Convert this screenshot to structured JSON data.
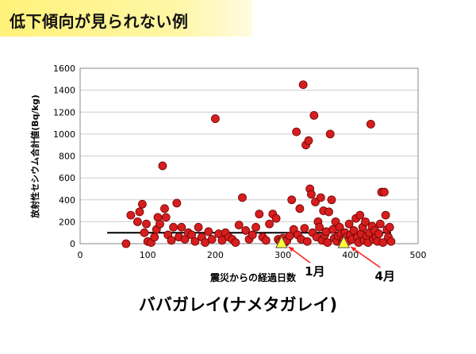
{
  "header": {
    "title": "低下傾向が見られない例"
  },
  "figure_title": "ババガレイ(ナメタガレイ)",
  "colors": {
    "banner": "#fff27a",
    "point_fill": "#d61e1e",
    "point_stroke": "#6a0000",
    "triangle_fill": "#ffff33",
    "arrow": "#ff1a1a",
    "grid": "#cccccc",
    "trend": "#000000"
  },
  "chart_data": {
    "type": "scatter",
    "xlabel": "震災からの経過日数",
    "ylabel": "放射性セシウム合計値(Bq/kg)",
    "xlim": [
      0,
      500
    ],
    "ylim": [
      0,
      1600
    ],
    "xticks": [
      "0",
      "100",
      "200",
      "300",
      "400",
      "500"
    ],
    "yticks": [
      "0",
      "200",
      "400",
      "600",
      "800",
      "1000",
      "1200",
      "1400",
      "1600"
    ],
    "grid": "horizontal",
    "trend_line": {
      "x": [
        40,
        460
      ],
      "y": [
        100,
        100
      ]
    },
    "highlighted_points": [
      {
        "label": "1月",
        "x": 298,
        "y": 0
      },
      {
        "label": "4月",
        "x": 390,
        "y": 0
      }
    ],
    "points": [
      [
        68,
        0
      ],
      [
        75,
        260
      ],
      [
        85,
        200
      ],
      [
        88,
        290
      ],
      [
        92,
        360
      ],
      [
        95,
        100
      ],
      [
        98,
        180
      ],
      [
        100,
        20
      ],
      [
        105,
        10
      ],
      [
        110,
        60
      ],
      [
        113,
        130
      ],
      [
        115,
        240
      ],
      [
        118,
        180
      ],
      [
        122,
        710
      ],
      [
        125,
        320
      ],
      [
        127,
        240
      ],
      [
        130,
        80
      ],
      [
        135,
        30
      ],
      [
        138,
        150
      ],
      [
        143,
        370
      ],
      [
        146,
        60
      ],
      [
        150,
        150
      ],
      [
        155,
        40
      ],
      [
        160,
        100
      ],
      [
        165,
        80
      ],
      [
        170,
        20
      ],
      [
        175,
        150
      ],
      [
        180,
        60
      ],
      [
        185,
        10
      ],
      [
        190,
        110
      ],
      [
        195,
        40
      ],
      [
        200,
        1140
      ],
      [
        205,
        90
      ],
      [
        210,
        30
      ],
      [
        215,
        100
      ],
      [
        220,
        60
      ],
      [
        225,
        40
      ],
      [
        230,
        10
      ],
      [
        235,
        170
      ],
      [
        240,
        420
      ],
      [
        245,
        120
      ],
      [
        250,
        40
      ],
      [
        255,
        80
      ],
      [
        260,
        150
      ],
      [
        265,
        270
      ],
      [
        270,
        60
      ],
      [
        275,
        30
      ],
      [
        280,
        180
      ],
      [
        285,
        270
      ],
      [
        290,
        230
      ],
      [
        293,
        40
      ],
      [
        296,
        20
      ],
      [
        300,
        50
      ],
      [
        303,
        10
      ],
      [
        306,
        30
      ],
      [
        310,
        70
      ],
      [
        313,
        400
      ],
      [
        316,
        130
      ],
      [
        320,
        1020
      ],
      [
        322,
        80
      ],
      [
        325,
        320
      ],
      [
        327,
        40
      ],
      [
        330,
        1450
      ],
      [
        332,
        140
      ],
      [
        334,
        900
      ],
      [
        336,
        20
      ],
      [
        338,
        940
      ],
      [
        340,
        500
      ],
      [
        342,
        450
      ],
      [
        344,
        100
      ],
      [
        346,
        1170
      ],
      [
        348,
        380
      ],
      [
        350,
        60
      ],
      [
        352,
        200
      ],
      [
        354,
        150
      ],
      [
        356,
        420
      ],
      [
        358,
        30
      ],
      [
        360,
        300
      ],
      [
        362,
        80
      ],
      [
        364,
        110
      ],
      [
        366,
        10
      ],
      [
        368,
        290
      ],
      [
        370,
        1000
      ],
      [
        372,
        400
      ],
      [
        374,
        130
      ],
      [
        376,
        50
      ],
      [
        378,
        200
      ],
      [
        380,
        20
      ],
      [
        382,
        70
      ],
      [
        384,
        150
      ],
      [
        386,
        90
      ],
      [
        388,
        10
      ],
      [
        390,
        40
      ],
      [
        392,
        100
      ],
      [
        394,
        60
      ],
      [
        396,
        20
      ],
      [
        398,
        180
      ],
      [
        400,
        80
      ],
      [
        402,
        40
      ],
      [
        405,
        120
      ],
      [
        408,
        230
      ],
      [
        410,
        60
      ],
      [
        412,
        10
      ],
      [
        414,
        260
      ],
      [
        416,
        90
      ],
      [
        418,
        150
      ],
      [
        420,
        30
      ],
      [
        422,
        200
      ],
      [
        424,
        70
      ],
      [
        426,
        10
      ],
      [
        428,
        100
      ],
      [
        430,
        1090
      ],
      [
        432,
        160
      ],
      [
        434,
        40
      ],
      [
        436,
        120
      ],
      [
        438,
        60
      ],
      [
        440,
        20
      ],
      [
        442,
        90
      ],
      [
        444,
        180
      ],
      [
        446,
        470
      ],
      [
        448,
        10
      ],
      [
        450,
        470
      ],
      [
        452,
        260
      ],
      [
        454,
        130
      ],
      [
        456,
        60
      ],
      [
        458,
        150
      ],
      [
        460,
        20
      ]
    ]
  }
}
